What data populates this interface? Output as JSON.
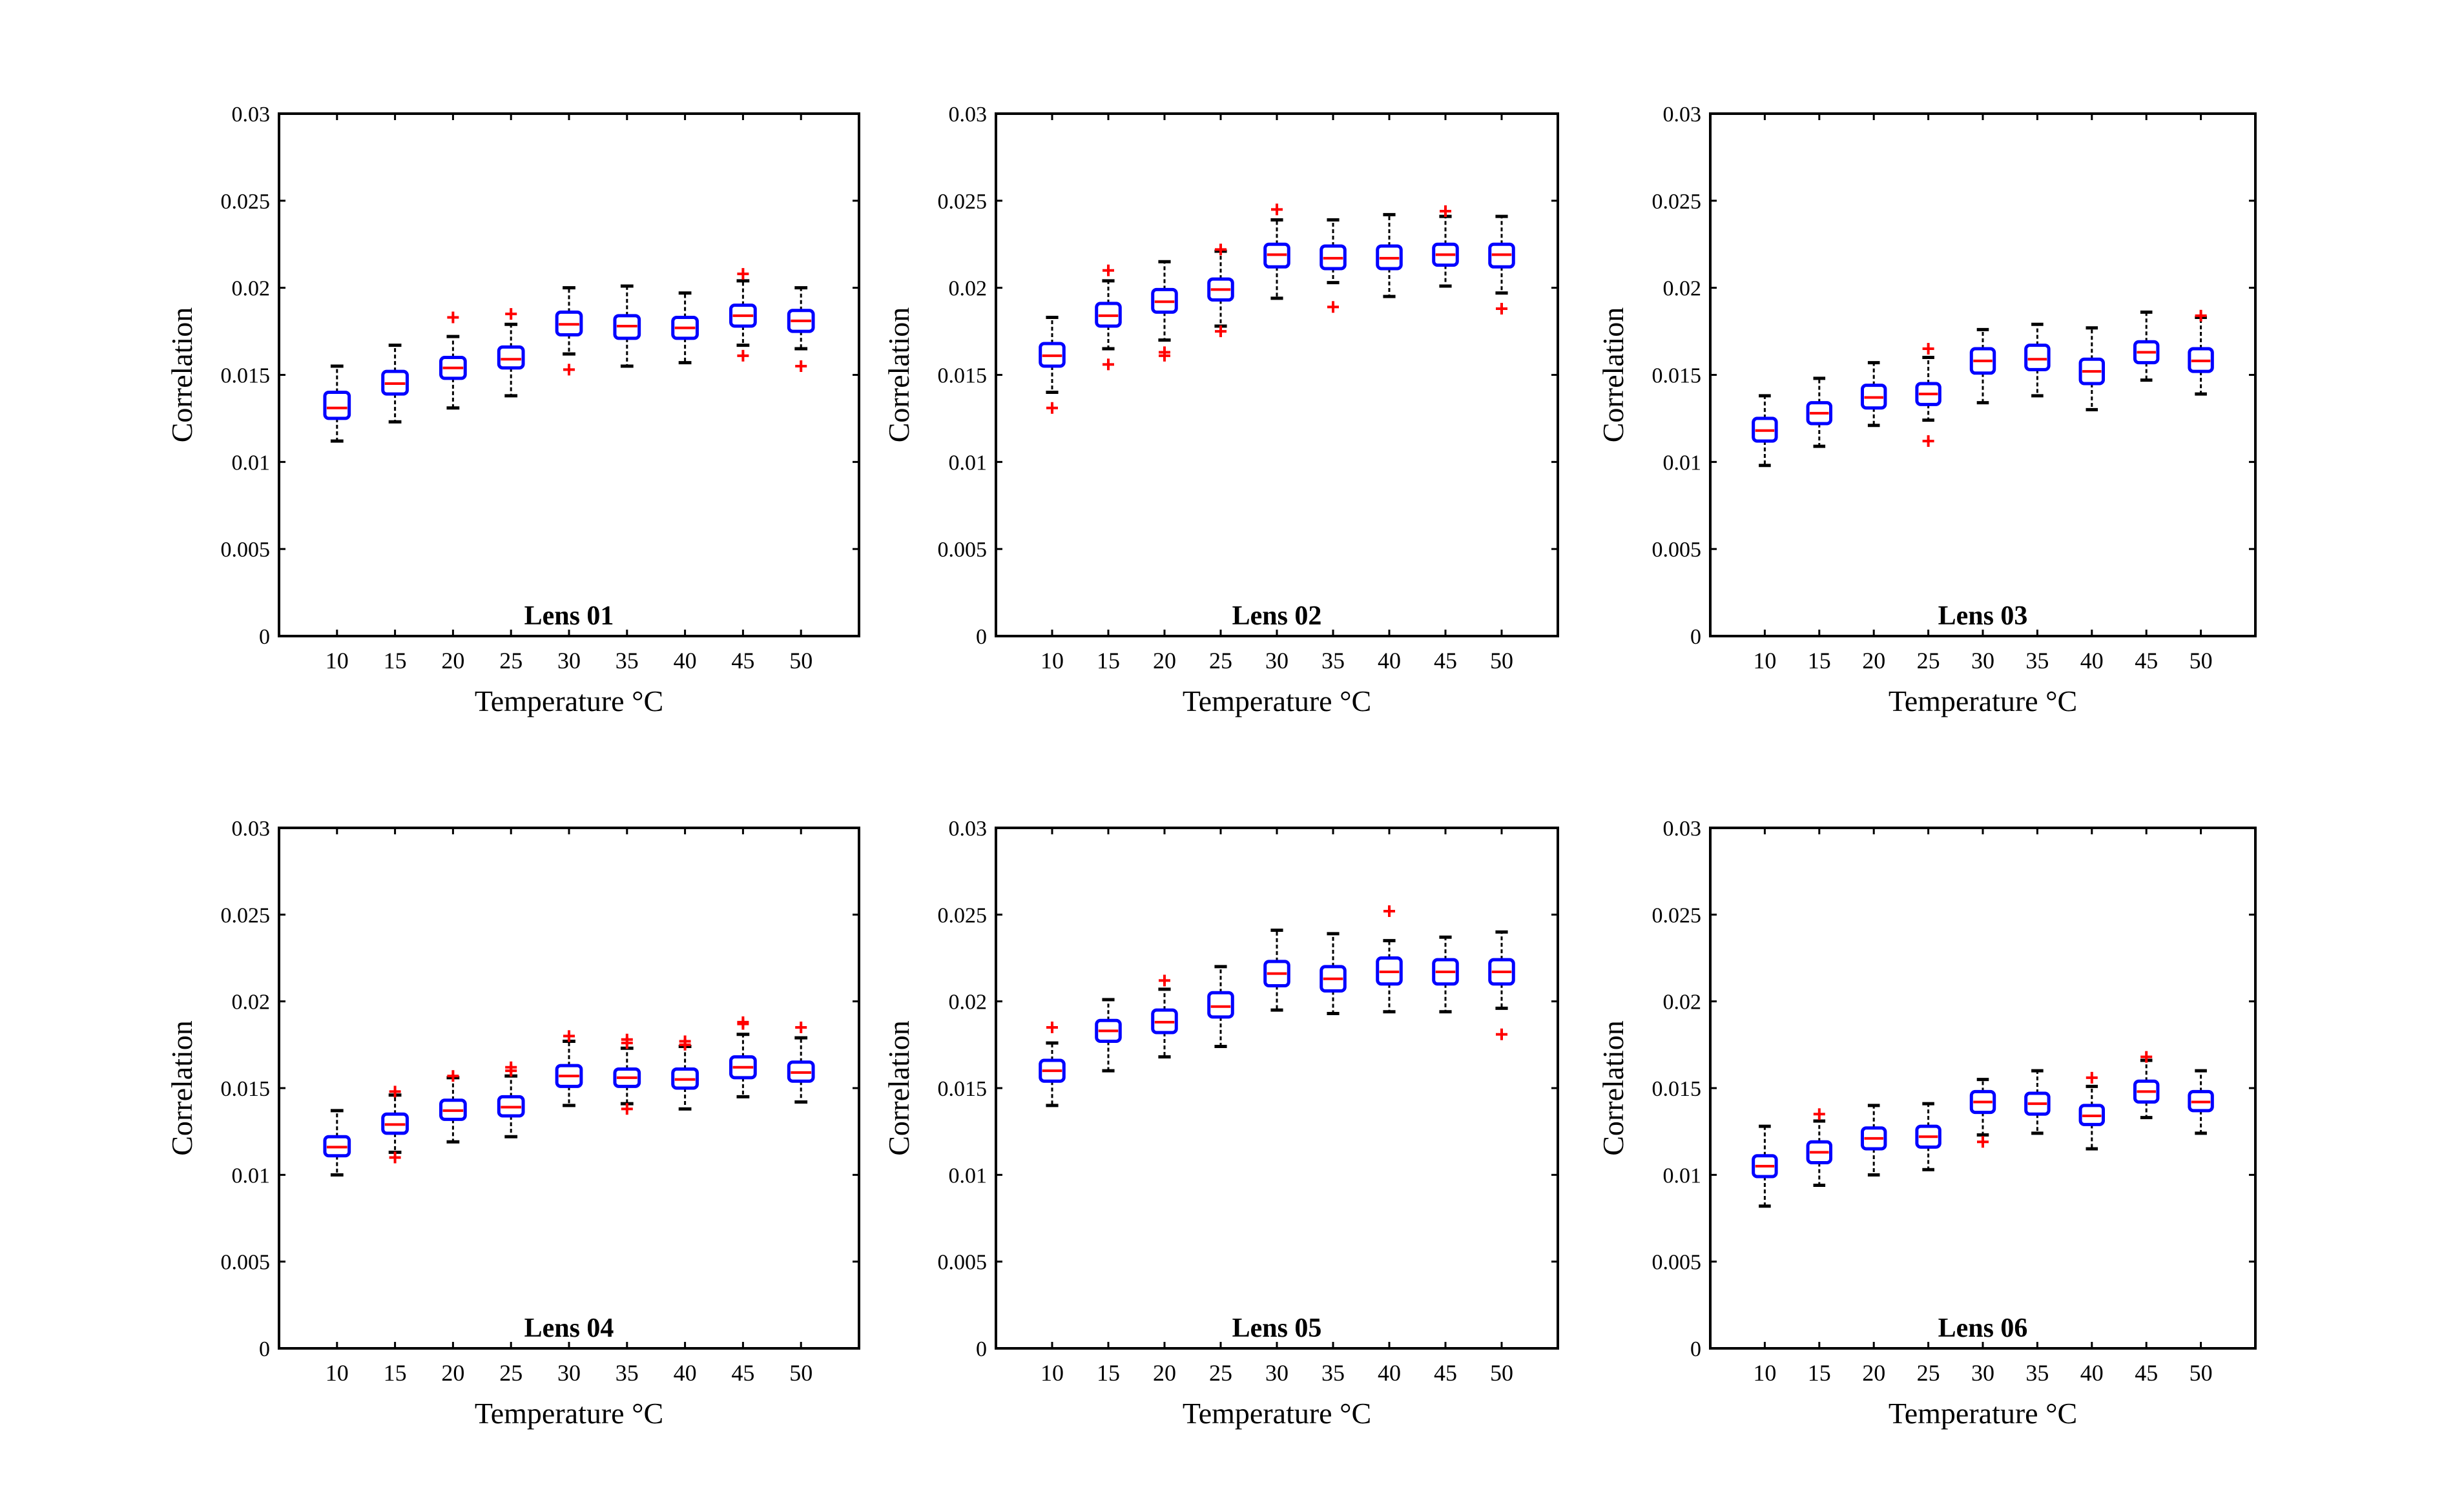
{
  "figure": {
    "colors": {
      "box": "#0000ff",
      "median": "#ff0000",
      "outlier": "#ff0000",
      "whisker": "#000000",
      "axis": "#000000"
    }
  },
  "chart_data": [
    {
      "type": "box",
      "title": "Lens 01",
      "xlabel": "Temperature °C",
      "ylabel": "Correlation",
      "categories": [
        "10",
        "15",
        "20",
        "25",
        "30",
        "35",
        "40",
        "45",
        "50"
      ],
      "yticks": [
        "0",
        "0.005",
        "0.01",
        "0.015",
        "0.02",
        "0.025",
        "0.03"
      ],
      "ylim": [
        0,
        0.03
      ],
      "boxes": [
        {
          "x": "10",
          "whisker_low": 0.0112,
          "q1": 0.0125,
          "median": 0.0131,
          "q3": 0.014,
          "whisker_high": 0.0155,
          "outliers": []
        },
        {
          "x": "15",
          "whisker_low": 0.0123,
          "q1": 0.0139,
          "median": 0.0145,
          "q3": 0.0152,
          "whisker_high": 0.0167,
          "outliers": []
        },
        {
          "x": "20",
          "whisker_low": 0.0131,
          "q1": 0.0148,
          "median": 0.0154,
          "q3": 0.016,
          "whisker_high": 0.0172,
          "outliers": [
            0.0183
          ]
        },
        {
          "x": "25",
          "whisker_low": 0.0138,
          "q1": 0.0154,
          "median": 0.0159,
          "q3": 0.0166,
          "whisker_high": 0.0179,
          "outliers": [
            0.0185
          ]
        },
        {
          "x": "30",
          "whisker_low": 0.0162,
          "q1": 0.0173,
          "median": 0.0179,
          "q3": 0.0186,
          "whisker_high": 0.02,
          "outliers": [
            0.0153
          ]
        },
        {
          "x": "35",
          "whisker_low": 0.0155,
          "q1": 0.0171,
          "median": 0.0178,
          "q3": 0.0184,
          "whisker_high": 0.0201,
          "outliers": []
        },
        {
          "x": "40",
          "whisker_low": 0.0157,
          "q1": 0.0171,
          "median": 0.0177,
          "q3": 0.0183,
          "whisker_high": 0.0197,
          "outliers": []
        },
        {
          "x": "45",
          "whisker_low": 0.0167,
          "q1": 0.0178,
          "median": 0.0184,
          "q3": 0.019,
          "whisker_high": 0.0204,
          "outliers": [
            0.0161,
            0.0208
          ]
        },
        {
          "x": "50",
          "whisker_low": 0.0165,
          "q1": 0.0175,
          "median": 0.0181,
          "q3": 0.0187,
          "whisker_high": 0.02,
          "outliers": [
            0.0155
          ]
        }
      ]
    },
    {
      "type": "box",
      "title": "Lens 02",
      "xlabel": "Temperature °C",
      "ylabel": "Correlation",
      "categories": [
        "10",
        "15",
        "20",
        "25",
        "30",
        "35",
        "40",
        "45",
        "50"
      ],
      "yticks": [
        "0",
        "0.005",
        "0.01",
        "0.015",
        "0.02",
        "0.025",
        "0.03"
      ],
      "ylim": [
        0,
        0.03
      ],
      "boxes": [
        {
          "x": "10",
          "whisker_low": 0.014,
          "q1": 0.0155,
          "median": 0.0161,
          "q3": 0.0168,
          "whisker_high": 0.0183,
          "outliers": [
            0.0131
          ]
        },
        {
          "x": "15",
          "whisker_low": 0.0165,
          "q1": 0.0178,
          "median": 0.0184,
          "q3": 0.0191,
          "whisker_high": 0.0204,
          "outliers": [
            0.0156,
            0.021
          ]
        },
        {
          "x": "20",
          "whisker_low": 0.017,
          "q1": 0.0186,
          "median": 0.0192,
          "q3": 0.0199,
          "whisker_high": 0.0215,
          "outliers": [
            0.0161,
            0.0163
          ]
        },
        {
          "x": "25",
          "whisker_low": 0.0178,
          "q1": 0.0193,
          "median": 0.0199,
          "q3": 0.0205,
          "whisker_high": 0.0221,
          "outliers": [
            0.0175,
            0.0222
          ]
        },
        {
          "x": "30",
          "whisker_low": 0.0194,
          "q1": 0.0212,
          "median": 0.0219,
          "q3": 0.0225,
          "whisker_high": 0.0239,
          "outliers": [
            0.0245
          ]
        },
        {
          "x": "35",
          "whisker_low": 0.0203,
          "q1": 0.0211,
          "median": 0.0217,
          "q3": 0.0224,
          "whisker_high": 0.0239,
          "outliers": [
            0.0189
          ]
        },
        {
          "x": "40",
          "whisker_low": 0.0195,
          "q1": 0.0211,
          "median": 0.0217,
          "q3": 0.0224,
          "whisker_high": 0.0242,
          "outliers": []
        },
        {
          "x": "45",
          "whisker_low": 0.0201,
          "q1": 0.0213,
          "median": 0.0219,
          "q3": 0.0225,
          "whisker_high": 0.0241,
          "outliers": [
            0.0244
          ]
        },
        {
          "x": "50",
          "whisker_low": 0.0197,
          "q1": 0.0212,
          "median": 0.0219,
          "q3": 0.0225,
          "whisker_high": 0.0241,
          "outliers": [
            0.0188
          ]
        }
      ]
    },
    {
      "type": "box",
      "title": "Lens 03",
      "xlabel": "Temperature °C",
      "ylabel": "Correlation",
      "categories": [
        "10",
        "15",
        "20",
        "25",
        "30",
        "35",
        "40",
        "45",
        "50"
      ],
      "yticks": [
        "0",
        "0.005",
        "0.01",
        "0.015",
        "0.02",
        "0.025",
        "0.03"
      ],
      "ylim": [
        0,
        0.03
      ],
      "boxes": [
        {
          "x": "10",
          "whisker_low": 0.0098,
          "q1": 0.0112,
          "median": 0.0118,
          "q3": 0.0125,
          "whisker_high": 0.0138,
          "outliers": []
        },
        {
          "x": "15",
          "whisker_low": 0.0109,
          "q1": 0.0122,
          "median": 0.0128,
          "q3": 0.0134,
          "whisker_high": 0.0148,
          "outliers": []
        },
        {
          "x": "20",
          "whisker_low": 0.0121,
          "q1": 0.0131,
          "median": 0.0137,
          "q3": 0.0144,
          "whisker_high": 0.0157,
          "outliers": []
        },
        {
          "x": "25",
          "whisker_low": 0.0124,
          "q1": 0.0133,
          "median": 0.0139,
          "q3": 0.0145,
          "whisker_high": 0.016,
          "outliers": [
            0.0112,
            0.0165
          ]
        },
        {
          "x": "30",
          "whisker_low": 0.0134,
          "q1": 0.0151,
          "median": 0.0158,
          "q3": 0.0165,
          "whisker_high": 0.0176,
          "outliers": []
        },
        {
          "x": "35",
          "whisker_low": 0.0138,
          "q1": 0.0153,
          "median": 0.0159,
          "q3": 0.0167,
          "whisker_high": 0.0179,
          "outliers": []
        },
        {
          "x": "40",
          "whisker_low": 0.013,
          "q1": 0.0145,
          "median": 0.0152,
          "q3": 0.0159,
          "whisker_high": 0.0177,
          "outliers": []
        },
        {
          "x": "45",
          "whisker_low": 0.0147,
          "q1": 0.0157,
          "median": 0.0163,
          "q3": 0.0169,
          "whisker_high": 0.0186,
          "outliers": []
        },
        {
          "x": "50",
          "whisker_low": 0.0139,
          "q1": 0.0152,
          "median": 0.0158,
          "q3": 0.0165,
          "whisker_high": 0.0183,
          "outliers": [
            0.0184
          ]
        }
      ]
    },
    {
      "type": "box",
      "title": "Lens 04",
      "xlabel": "Temperature °C",
      "ylabel": "Correlation",
      "categories": [
        "10",
        "15",
        "20",
        "25",
        "30",
        "35",
        "40",
        "45",
        "50"
      ],
      "yticks": [
        "0",
        "0.005",
        "0.01",
        "0.015",
        "0.02",
        "0.025",
        "0.03"
      ],
      "ylim": [
        0,
        0.03
      ],
      "boxes": [
        {
          "x": "10",
          "whisker_low": 0.01,
          "q1": 0.0111,
          "median": 0.0116,
          "q3": 0.0122,
          "whisker_high": 0.0137,
          "outliers": []
        },
        {
          "x": "15",
          "whisker_low": 0.0113,
          "q1": 0.0124,
          "median": 0.0129,
          "q3": 0.0135,
          "whisker_high": 0.0146,
          "outliers": [
            0.011,
            0.0148
          ]
        },
        {
          "x": "20",
          "whisker_low": 0.0119,
          "q1": 0.0132,
          "median": 0.0137,
          "q3": 0.0143,
          "whisker_high": 0.0156,
          "outliers": [
            0.0157
          ]
        },
        {
          "x": "25",
          "whisker_low": 0.0122,
          "q1": 0.0134,
          "median": 0.0139,
          "q3": 0.0145,
          "whisker_high": 0.0157,
          "outliers": [
            0.016,
            0.0162
          ]
        },
        {
          "x": "30",
          "whisker_low": 0.014,
          "q1": 0.0151,
          "median": 0.0157,
          "q3": 0.0163,
          "whisker_high": 0.0177,
          "outliers": [
            0.018
          ]
        },
        {
          "x": "35",
          "whisker_low": 0.0141,
          "q1": 0.0151,
          "median": 0.0156,
          "q3": 0.0161,
          "whisker_high": 0.0173,
          "outliers": [
            0.0138,
            0.0176,
            0.0178
          ]
        },
        {
          "x": "40",
          "whisker_low": 0.0138,
          "q1": 0.015,
          "median": 0.0155,
          "q3": 0.0161,
          "whisker_high": 0.0174,
          "outliers": [
            0.0175,
            0.0177
          ]
        },
        {
          "x": "45",
          "whisker_low": 0.0145,
          "q1": 0.0156,
          "median": 0.0162,
          "q3": 0.0168,
          "whisker_high": 0.0181,
          "outliers": [
            0.0187,
            0.0188
          ]
        },
        {
          "x": "50",
          "whisker_low": 0.0142,
          "q1": 0.0154,
          "median": 0.0159,
          "q3": 0.0165,
          "whisker_high": 0.0179,
          "outliers": [
            0.0185
          ]
        }
      ]
    },
    {
      "type": "box",
      "title": "Lens 05",
      "xlabel": "Temperature °C",
      "ylabel": "Correlation",
      "categories": [
        "10",
        "15",
        "20",
        "25",
        "30",
        "35",
        "40",
        "45",
        "50"
      ],
      "yticks": [
        "0",
        "0.005",
        "0.01",
        "0.015",
        "0.02",
        "0.025",
        "0.03"
      ],
      "ylim": [
        0,
        0.03
      ],
      "boxes": [
        {
          "x": "10",
          "whisker_low": 0.014,
          "q1": 0.0154,
          "median": 0.016,
          "q3": 0.0166,
          "whisker_high": 0.0176,
          "outliers": [
            0.0185
          ]
        },
        {
          "x": "15",
          "whisker_low": 0.016,
          "q1": 0.0177,
          "median": 0.0183,
          "q3": 0.0189,
          "whisker_high": 0.0201,
          "outliers": []
        },
        {
          "x": "20",
          "whisker_low": 0.0168,
          "q1": 0.0182,
          "median": 0.0188,
          "q3": 0.0195,
          "whisker_high": 0.0207,
          "outliers": [
            0.0212
          ]
        },
        {
          "x": "25",
          "whisker_low": 0.0174,
          "q1": 0.0191,
          "median": 0.0197,
          "q3": 0.0205,
          "whisker_high": 0.022,
          "outliers": []
        },
        {
          "x": "30",
          "whisker_low": 0.0195,
          "q1": 0.0209,
          "median": 0.0216,
          "q3": 0.0223,
          "whisker_high": 0.0241,
          "outliers": []
        },
        {
          "x": "35",
          "whisker_low": 0.0193,
          "q1": 0.0206,
          "median": 0.0213,
          "q3": 0.022,
          "whisker_high": 0.0239,
          "outliers": []
        },
        {
          "x": "40",
          "whisker_low": 0.0194,
          "q1": 0.021,
          "median": 0.0217,
          "q3": 0.0225,
          "whisker_high": 0.0235,
          "outliers": [
            0.0252
          ]
        },
        {
          "x": "45",
          "whisker_low": 0.0194,
          "q1": 0.021,
          "median": 0.0217,
          "q3": 0.0224,
          "whisker_high": 0.0237,
          "outliers": []
        },
        {
          "x": "50",
          "whisker_low": 0.0196,
          "q1": 0.021,
          "median": 0.0217,
          "q3": 0.0224,
          "whisker_high": 0.024,
          "outliers": [
            0.0181
          ]
        }
      ]
    },
    {
      "type": "box",
      "title": "Lens 06",
      "xlabel": "Temperature °C",
      "ylabel": "Correlation",
      "categories": [
        "10",
        "15",
        "20",
        "25",
        "30",
        "35",
        "40",
        "45",
        "50"
      ],
      "yticks": [
        "0",
        "0.005",
        "0.01",
        "0.015",
        "0.02",
        "0.025",
        "0.03"
      ],
      "ylim": [
        0,
        0.03
      ],
      "boxes": [
        {
          "x": "10",
          "whisker_low": 0.0082,
          "q1": 0.0099,
          "median": 0.0105,
          "q3": 0.0111,
          "whisker_high": 0.0128,
          "outliers": []
        },
        {
          "x": "15",
          "whisker_low": 0.0094,
          "q1": 0.0107,
          "median": 0.0113,
          "q3": 0.0119,
          "whisker_high": 0.0131,
          "outliers": [
            0.0135
          ]
        },
        {
          "x": "20",
          "whisker_low": 0.01,
          "q1": 0.0115,
          "median": 0.0121,
          "q3": 0.0127,
          "whisker_high": 0.014,
          "outliers": []
        },
        {
          "x": "25",
          "whisker_low": 0.0103,
          "q1": 0.0116,
          "median": 0.0122,
          "q3": 0.0128,
          "whisker_high": 0.0141,
          "outliers": []
        },
        {
          "x": "30",
          "whisker_low": 0.0123,
          "q1": 0.0136,
          "median": 0.0142,
          "q3": 0.0148,
          "whisker_high": 0.0155,
          "outliers": [
            0.0119
          ]
        },
        {
          "x": "35",
          "whisker_low": 0.0124,
          "q1": 0.0135,
          "median": 0.0141,
          "q3": 0.0147,
          "whisker_high": 0.016,
          "outliers": []
        },
        {
          "x": "40",
          "whisker_low": 0.0115,
          "q1": 0.0129,
          "median": 0.0134,
          "q3": 0.014,
          "whisker_high": 0.0151,
          "outliers": [
            0.0156
          ]
        },
        {
          "x": "45",
          "whisker_low": 0.0133,
          "q1": 0.0142,
          "median": 0.0148,
          "q3": 0.0154,
          "whisker_high": 0.0166,
          "outliers": [
            0.0168
          ]
        },
        {
          "x": "50",
          "whisker_low": 0.0124,
          "q1": 0.0137,
          "median": 0.0142,
          "q3": 0.0148,
          "whisker_high": 0.016,
          "outliers": []
        }
      ]
    }
  ]
}
